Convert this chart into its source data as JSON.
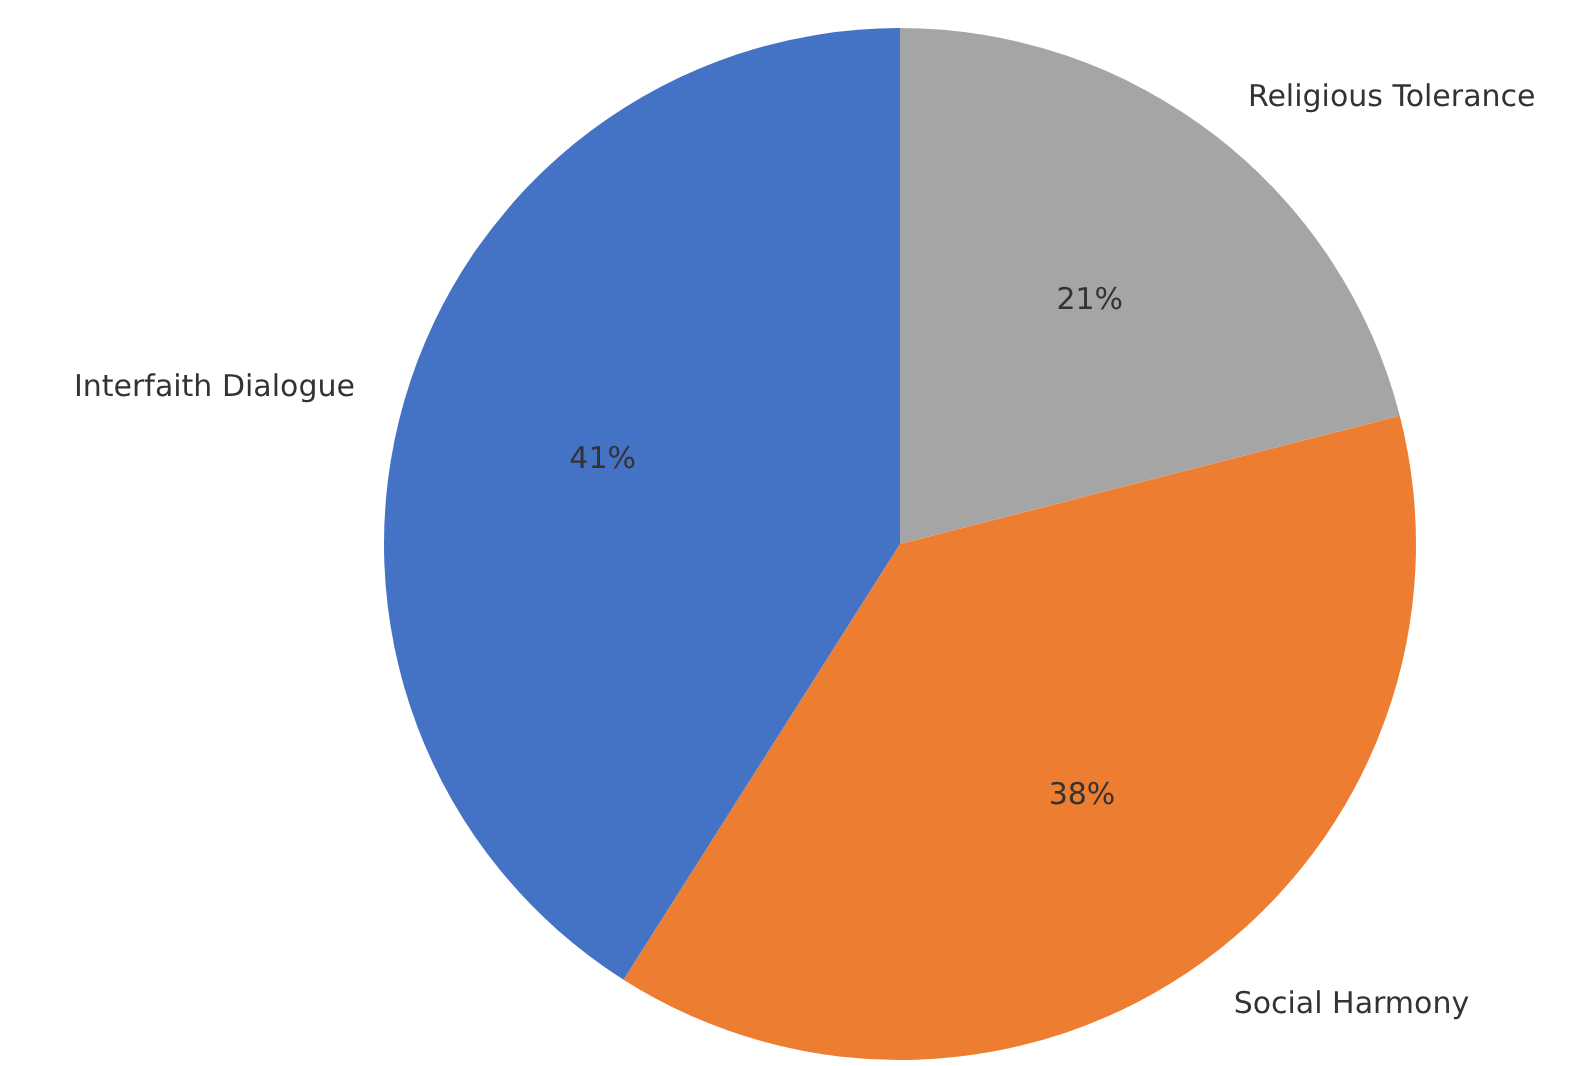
{
  "chart_data": {
    "type": "pie",
    "categories": [
      "Religious Tolerance",
      "Social Harmony",
      "Interfaith Dialogue"
    ],
    "values": [
      21,
      38,
      41
    ],
    "value_labels": [
      "21%",
      "38%",
      "41%"
    ],
    "colors": [
      "#a5a5a5",
      "#ed7d31",
      "#4472c4"
    ]
  }
}
